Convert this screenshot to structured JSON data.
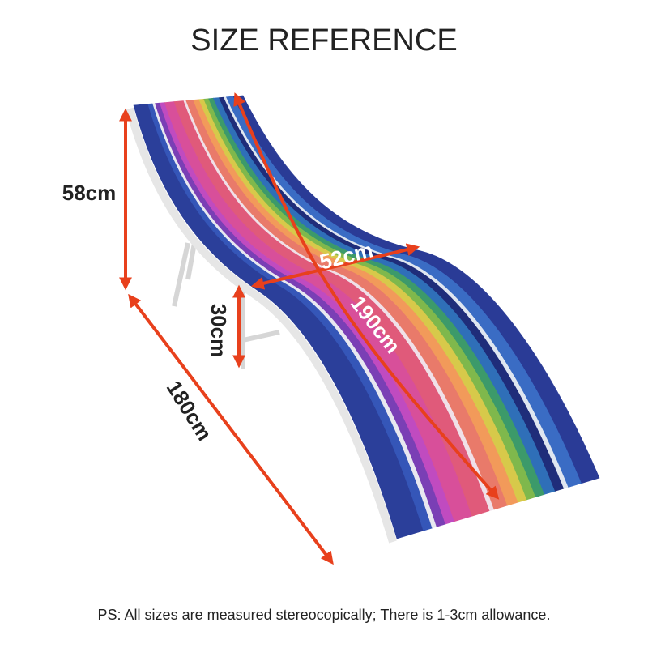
{
  "title": "SIZE REFERENCE",
  "dimensions": {
    "height": "58cm",
    "seat_height": "30cm",
    "length": "180cm",
    "width": "52cm",
    "fabric_length": "190cm"
  },
  "footnote": "PS: All sizes are measured stereocopically; There is 1-3cm allowance."
}
